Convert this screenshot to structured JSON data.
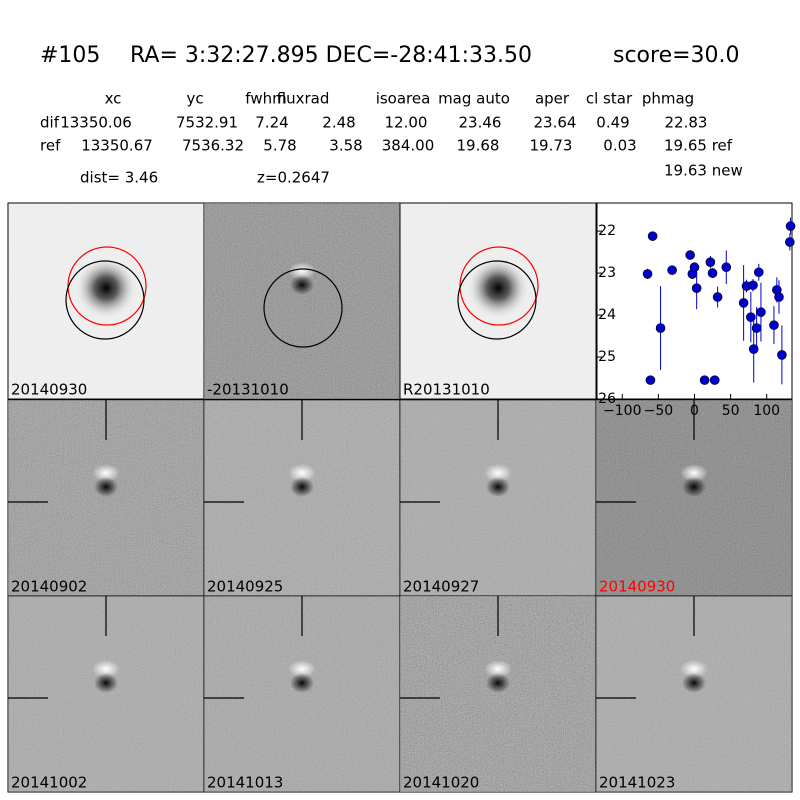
{
  "header": {
    "id": "#105",
    "coords": "RA= 3:32:27.895 DEC=-28:41:33.50",
    "score": "score=30.0"
  },
  "table": {
    "columns": [
      "xc",
      "yc",
      "fwhm",
      "fluxrad",
      "isoarea",
      "mag auto",
      "aper",
      "cl star",
      "phmag"
    ],
    "rows": [
      [
        "dif",
        "13350.06",
        "7532.91",
        "7.24",
        "2.48",
        "12.00",
        "23.46",
        "23.64",
        "0.49",
        "22.83"
      ],
      [
        "ref",
        "13350.67",
        "7536.32",
        "5.78",
        "3.58",
        "384.00",
        "19.68",
        "19.73",
        "0.03",
        "19.65 ref"
      ]
    ],
    "extra": "19.63 new"
  },
  "dist": "dist=  3.46",
  "z": "z=0.2647",
  "stamps": [
    {
      "label": "20140930"
    },
    {
      "label": "-20131010"
    },
    {
      "label": "R20131010"
    },
    {
      "label": "20140902"
    },
    {
      "label": "20140925"
    },
    {
      "label": "20140927"
    },
    {
      "label": "20140930",
      "color": "#ff0000"
    },
    {
      "label": "20141002"
    },
    {
      "label": "20141013"
    },
    {
      "label": "20141020"
    },
    {
      "label": "20141023"
    }
  ],
  "chart_data": {
    "type": "scatter",
    "color": "#0000cc",
    "x": [
      -65,
      -61,
      -58,
      -47,
      -31,
      -6,
      -3,
      0,
      3,
      14,
      22,
      25,
      28,
      32,
      44,
      68,
      72,
      78,
      81,
      82,
      86,
      89,
      92,
      110,
      114,
      117,
      121,
      132,
      133
    ],
    "values": [
      23.02,
      25.55,
      22.12,
      24.31,
      22.93,
      22.57,
      23.02,
      22.86,
      23.36,
      25.55,
      22.74,
      23.0,
      25.55,
      23.57,
      22.86,
      23.71,
      23.31,
      24.05,
      23.29,
      24.81,
      24.31,
      22.98,
      23.93,
      24.24,
      23.4,
      23.57,
      24.95,
      22.26,
      21.88
    ],
    "errors": [
      0.12,
      0.1,
      0.1,
      1.0,
      0.1,
      0.1,
      0.12,
      0.1,
      0.5,
      0.1,
      0.15,
      0.12,
      0.1,
      0.25,
      0.4,
      0.9,
      0.15,
      0.6,
      0.15,
      0.8,
      0.5,
      0.2,
      0.7,
      0.45,
      0.3,
      0.4,
      0.7,
      0.2,
      0.2
    ],
    "xlim": [
      -135,
      135
    ],
    "ylim": [
      26,
      21.33
    ],
    "xticks": [
      {
        "value": -100,
        "label": "−100"
      },
      {
        "value": -50,
        "label": "−50"
      },
      0,
      50,
      100
    ],
    "yticks": [
      22,
      23,
      24,
      25,
      26
    ]
  }
}
